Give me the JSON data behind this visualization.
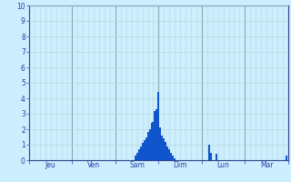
{
  "background_color": "#cceeff",
  "plot_bg_color": "#cceeff",
  "grid_color_minor": "#b8d8d8",
  "grid_color_major": "#88aaaa",
  "bar_color": "#1155cc",
  "bar_edge_color": "#1155cc",
  "ylim": [
    0,
    10
  ],
  "yticks": [
    0,
    1,
    2,
    3,
    4,
    5,
    6,
    7,
    8,
    9,
    10
  ],
  "day_labels": [
    "Jeu",
    "Ven",
    "Sam",
    "Dim",
    "Lun",
    "Mar"
  ],
  "n_bars": 144,
  "bars": [
    0,
    0,
    0,
    0,
    0,
    0,
    0,
    0,
    0,
    0,
    0,
    0,
    0,
    0,
    0,
    0,
    0,
    0,
    0,
    0,
    0,
    0,
    0,
    0,
    0,
    0,
    0,
    0,
    0,
    0,
    0,
    0,
    0,
    0,
    0,
    0,
    0,
    0,
    0,
    0,
    0,
    0,
    0,
    0,
    0,
    0,
    0,
    0,
    0,
    0,
    0,
    0,
    0,
    0,
    0,
    0,
    0,
    0,
    0,
    0.3,
    0.5,
    0.7,
    0.9,
    1.1,
    1.3,
    1.5,
    1.8,
    2.0,
    2.4,
    2.5,
    3.2,
    3.3,
    4.4,
    2.1,
    1.6,
    1.4,
    1.2,
    0.9,
    0.7,
    0.5,
    0.3,
    0.1,
    0,
    0,
    0,
    0,
    0,
    0,
    0,
    0,
    0,
    0,
    0,
    0,
    0,
    0,
    0,
    0,
    0,
    0,
    1.0,
    0.5,
    0,
    0,
    0.4,
    0,
    0,
    0,
    0,
    0,
    0,
    0,
    0,
    0,
    0,
    0,
    0,
    0,
    0,
    0,
    0,
    0,
    0,
    0,
    0,
    0,
    0,
    0,
    0,
    0,
    0,
    0,
    0,
    0,
    0,
    0,
    0,
    0,
    0,
    0,
    0,
    0,
    0,
    0.3
  ],
  "tick_color": "#2244aa",
  "axis_label_color": "#2244aa",
  "spine_color": "#2244aa",
  "border_color": "#334488"
}
